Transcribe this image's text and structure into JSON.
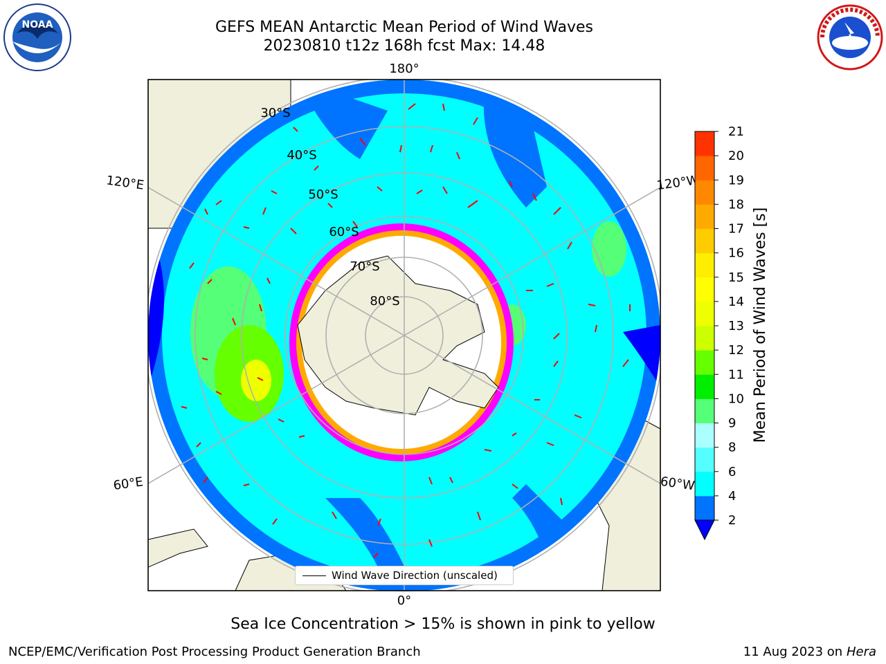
{
  "header": {
    "title_line1": "GEFS MEAN Antarctic Mean Period of Wind Waves",
    "title_line2": "20230810 t12z 168h fcst   Max: 14.48"
  },
  "logos": {
    "noaa": "NOAA",
    "nws": "NATIONAL WEATHER SERVICE"
  },
  "map": {
    "projection": "south-polar-stereographic",
    "longitude_labels": [
      "180°",
      "120°E",
      "120°W",
      "60°E",
      "60°W",
      "0°"
    ],
    "latitude_labels": [
      "30°S",
      "40°S",
      "50°S",
      "60°S",
      "70°S",
      "80°S"
    ],
    "legend_label": "Wind Wave Direction (unscaled)",
    "arrow_color": "#ff0000",
    "land_color": "#efefdc",
    "ice_colors": [
      "#ff00ff",
      "#ffa500",
      "#ffff00"
    ]
  },
  "colorbar": {
    "label": "Mean Period of Wind Waves [s]",
    "ticks": [
      "21",
      "20",
      "19",
      "18",
      "17",
      "16",
      "15",
      "14",
      "13",
      "12",
      "11",
      "10",
      "9",
      "8",
      "6",
      "4",
      "2"
    ],
    "bins": [
      {
        "color": "#0000ff",
        "range": "<2"
      },
      {
        "color": "#0073ff",
        "range": "2-4"
      },
      {
        "color": "#00ffff",
        "range": "4-6"
      },
      {
        "color": "#55ffff",
        "range": "6-8"
      },
      {
        "color": "#aaffff",
        "range": "8-9"
      },
      {
        "color": "#55ff77",
        "range": "9-10"
      },
      {
        "color": "#00ee00",
        "range": "10-11"
      },
      {
        "color": "#66ff00",
        "range": "11-12"
      },
      {
        "color": "#ccff00",
        "range": "12-13"
      },
      {
        "color": "#eeff00",
        "range": "13-14"
      },
      {
        "color": "#ffff00",
        "range": "14-15"
      },
      {
        "color": "#ffee00",
        "range": "15-16"
      },
      {
        "color": "#ffcc00",
        "range": "16-17"
      },
      {
        "color": "#ffaa00",
        "range": "17-18"
      },
      {
        "color": "#ff8800",
        "range": "18-19"
      },
      {
        "color": "#ff6600",
        "range": "19-20"
      },
      {
        "color": "#ff3300",
        "range": "20-21"
      }
    ]
  },
  "caption": "Sea Ice Concentration > 15% is shown in pink to yellow",
  "footer": {
    "left": "NCEP/EMC/Verification Post Processing Product Generation Branch",
    "right_date": "11 Aug 2023 on",
    "right_host": "Hera"
  }
}
